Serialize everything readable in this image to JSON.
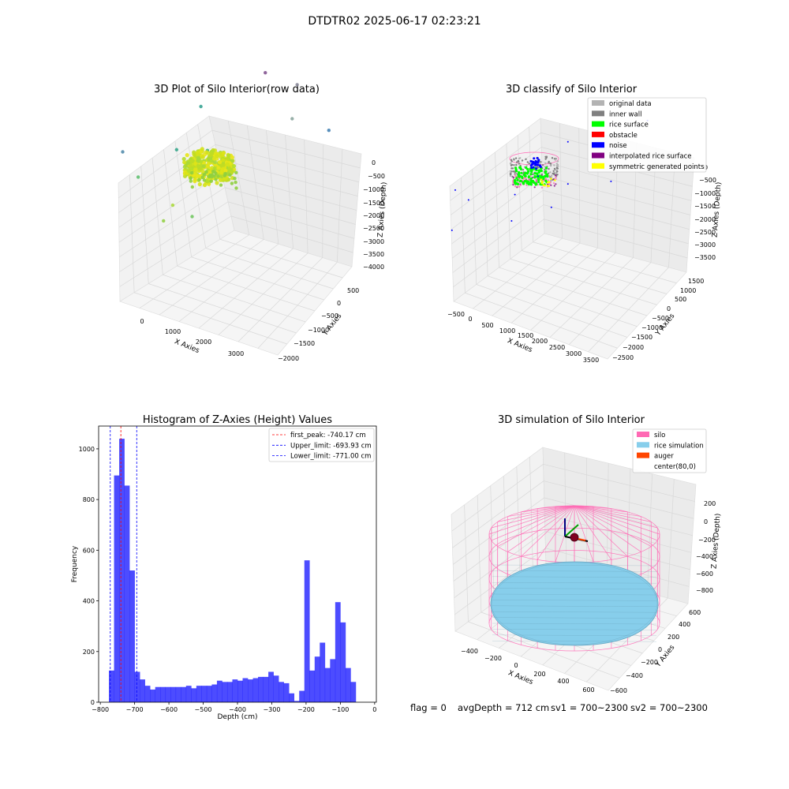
{
  "figure": {
    "suptitle": "DTDTR02 2025-06-17 02:23:21",
    "status": {
      "flag": "flag = 0",
      "avg_depth": "avgDepth = 712 cm",
      "sv1": "sv1 = 700~2300",
      "sv2": "sv2 = 700~2300"
    }
  },
  "panels": {
    "raw": {
      "title": "3D Plot of Silo Interior(row data)",
      "xlabel": "X Axies",
      "ylabel": "Y Axies",
      "zlabel": "Z Axies (Depth)",
      "xticks": [
        "0",
        "1000",
        "2000",
        "3000"
      ],
      "yticks": [
        "500",
        "0",
        "−500",
        "−1000",
        "−1500",
        "−2000"
      ],
      "zticks": [
        "0",
        "−500",
        "−1000",
        "−1500",
        "−2000",
        "−2500",
        "−3000",
        "−3500",
        "−4000"
      ]
    },
    "classify": {
      "title": "3D classify of Silo Interior",
      "xlabel": "X Axies",
      "ylabel": "Y Axies",
      "zlabel": "Z Axies (Depth)",
      "xticks": [
        "−500",
        "0",
        "500",
        "1000",
        "1500",
        "2000",
        "2500",
        "3000",
        "3500"
      ],
      "yticks": [
        "1500",
        "1000",
        "500",
        "0",
        "−500",
        "−1000",
        "−1500",
        "−2000",
        "−2500"
      ],
      "zticks": [
        "0",
        "−500",
        "−1000",
        "−1500",
        "−2000",
        "−2500",
        "−3000",
        "−3500"
      ],
      "legend": [
        {
          "label": "original data",
          "color": "#b3b3b3"
        },
        {
          "label": "inner wall",
          "color": "#808080"
        },
        {
          "label": "rice surface",
          "color": "#00ff00"
        },
        {
          "label": "obstacle",
          "color": "#ff0000"
        },
        {
          "label": "noise",
          "color": "#0000ff"
        },
        {
          "label": "interpolated rice surface",
          "color": "#800080"
        },
        {
          "label": "symmetric generated points",
          "color": "#ffff00"
        }
      ]
    },
    "simulation": {
      "title": "3D simulation of Silo Interior",
      "xlabel": "X Axies",
      "ylabel": "Y Axies",
      "zlabel": "Z Axies (Depth)",
      "xticks": [
        "−400",
        "−200",
        "0",
        "200",
        "400",
        "600"
      ],
      "yticks": [
        "600",
        "400",
        "200",
        "0",
        "−200",
        "−400",
        "−600"
      ],
      "zticks": [
        "200",
        "0",
        "−200",
        "−400",
        "−600",
        "−800"
      ],
      "legend": [
        {
          "label": "silo",
          "color": "#ff69b4"
        },
        {
          "label": "rice simulation",
          "color": "#87ceeb"
        },
        {
          "label": "auger",
          "color": "#ff4500"
        },
        {
          "label": "center(80,0)",
          "color": ""
        }
      ]
    }
  },
  "chart_data": [
    {
      "type": "heatmap",
      "title": "3D Plot of Silo Interior(row data)",
      "xlabel": "X Axies",
      "ylabel": "Y Axies",
      "zlabel": "Z Axies (Depth)",
      "xlim": [
        -500,
        3700
      ],
      "ylim": [
        -2000,
        700
      ],
      "zlim": [
        -4000,
        200
      ],
      "colormap": "viridis by depth",
      "outlier_points": [
        {
          "x": 600,
          "y": -250,
          "z": -700,
          "c": "#a8d836"
        },
        {
          "x": 800,
          "y": -900,
          "z": -900,
          "c": "#a8d836"
        },
        {
          "x": 1100,
          "y": 200,
          "z": -1000,
          "c": "#8fcf3f"
        },
        {
          "x": 500,
          "y": 300,
          "z": -2100,
          "c": "#58bd6a"
        },
        {
          "x": 1400,
          "y": -400,
          "z": -2200,
          "c": "#3fb27a"
        },
        {
          "x": 1800,
          "y": 100,
          "z": -1200,
          "c": "#6cc65b"
        },
        {
          "x": 200,
          "y": 400,
          "z": -2800,
          "c": "#4a86a8"
        },
        {
          "x": 2300,
          "y": -200,
          "z": -2000,
          "c": "#55b978"
        },
        {
          "x": 1500,
          "y": 200,
          "z": -3000,
          "c": "#2da386"
        },
        {
          "x": 1200,
          "y": -400,
          "z": -3300,
          "c": "#2a9d8c"
        },
        {
          "x": 2600,
          "y": -1200,
          "z": -2400,
          "c": "#86a29a"
        },
        {
          "x": 3200,
          "y": -1500,
          "z": -1900,
          "c": "#3b7bb0"
        },
        {
          "x": 3100,
          "y": -1000,
          "z": -3700,
          "c": "#8a8a9a"
        },
        {
          "x": 2300,
          "y": -900,
          "z": -3900,
          "c": "#7b4a8a"
        }
      ]
    },
    {
      "type": "scatter",
      "title": "3D classify of Silo Interior",
      "xlabel": "X Axies",
      "ylabel": "Y Axies",
      "zlabel": "Z Axies (Depth)",
      "xlim": [
        -500,
        3600
      ],
      "ylim": [
        -2600,
        1600
      ],
      "zlim": [
        -3700,
        100
      ],
      "noise_points": [
        {
          "x": 100,
          "y": 700,
          "z": -900
        },
        {
          "x": 1000,
          "y": -200,
          "z": -700
        },
        {
          "x": 400,
          "y": 500,
          "z": -1700
        },
        {
          "x": 300,
          "y": 800,
          "z": -2200
        },
        {
          "x": 1200,
          "y": -100,
          "z": -1600
        },
        {
          "x": 1800,
          "y": -600,
          "z": -1000
        },
        {
          "x": 1600,
          "y": -400,
          "z": -2000
        },
        {
          "x": 2100,
          "y": -800,
          "z": -1600
        },
        {
          "x": 2600,
          "y": -1100,
          "z": -2100
        },
        {
          "x": 2000,
          "y": -900,
          "z": -2700
        },
        {
          "x": 2900,
          "y": -1300,
          "z": -1500
        },
        {
          "x": 3300,
          "y": -2000,
          "z": -2800
        }
      ]
    },
    {
      "type": "bar",
      "title": "Histogram of Z-Axies (Height) Values",
      "xlabel": "Depth (cm)",
      "ylabel": "Frequency",
      "xlim": [
        -805,
        5
      ],
      "ylim": [
        0,
        1090
      ],
      "xticks": [
        -800,
        -700,
        -600,
        -500,
        -400,
        -300,
        -200,
        -100,
        0
      ],
      "yticks": [
        0,
        200,
        400,
        600,
        800,
        1000
      ],
      "bar_color": "#0000ff",
      "bins": {
        "start": -775,
        "width": 15,
        "values": [
          125,
          895,
          1040,
          855,
          520,
          120,
          90,
          65,
          50,
          60,
          60,
          60,
          60,
          60,
          60,
          65,
          55,
          65,
          65,
          65,
          70,
          85,
          80,
          80,
          90,
          85,
          95,
          90,
          95,
          100,
          100,
          120,
          105,
          80,
          75,
          35,
          5,
          45,
          560,
          125,
          180,
          235,
          135,
          170,
          395,
          315,
          135,
          80
        ]
      },
      "vlines": [
        {
          "x": -740.17,
          "color": "#ff0000",
          "label": "first_peak: -740.17 cm"
        },
        {
          "x": -693.93,
          "color": "#0000ff",
          "label": "Upper_limit: -693.93 cm"
        },
        {
          "x": -771.0,
          "color": "#0000ff",
          "label": "Lower_limit: -771.00 cm"
        }
      ],
      "legend_position": "top-right"
    },
    {
      "type": "area",
      "title": "3D simulation of Silo Interior",
      "xlabel": "X Axies",
      "ylabel": "Y Axies",
      "zlabel": "Z Axies (Depth)",
      "xlim": [
        -500,
        700
      ],
      "ylim": [
        -700,
        700
      ],
      "zlim": [
        -900,
        300
      ],
      "silo": {
        "center_x": 80,
        "center_y": 0,
        "radius": 600,
        "z_top": 100,
        "z_bottom": -880,
        "color": "#ff69b4"
      },
      "rice_surface": {
        "depth": -712,
        "color": "#87ceeb"
      },
      "auger": {
        "color": "#ff4500"
      }
    }
  ]
}
